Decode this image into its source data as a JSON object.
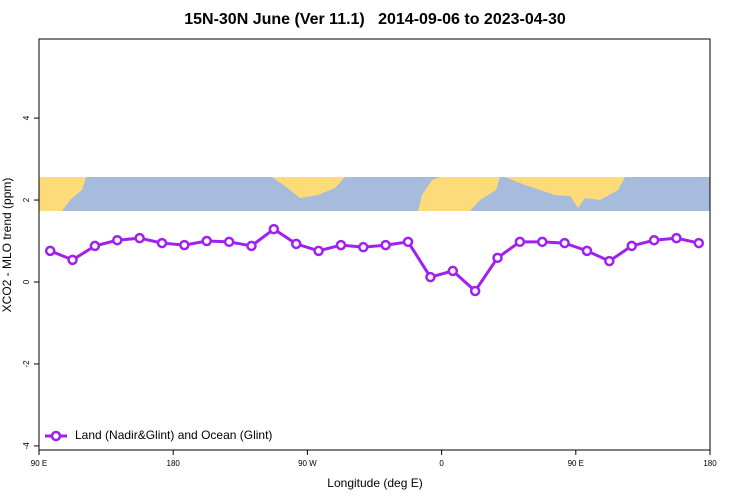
{
  "chart_data": {
    "type": "line",
    "title": "15N-30N June (Ver 11.1)   2014-09-06 to 2023-04-30",
    "x_label": "Longitude (deg E)",
    "y_label": "XCO2 - MLO trend (ppm)",
    "xlim": [
      90,
      540
    ],
    "ylim": [
      -4.1,
      5.93
    ],
    "xticks": [
      {
        "value": 90,
        "label": "90 E"
      },
      180,
      {
        "value": 270,
        "label": "90 W"
      },
      {
        "value": 360,
        "label": "0"
      },
      {
        "value": 450,
        "label": "90 E"
      },
      {
        "value": 540,
        "label": "180"
      }
    ],
    "yticks": [
      -4,
      -2,
      0,
      2,
      4
    ],
    "legend": "bottom-left",
    "x": [
      97.5,
      112.5,
      127.5,
      142.5,
      157.5,
      172.5,
      187.5,
      202.5,
      217.5,
      232.5,
      247.5,
      262.5,
      277.5,
      292.5,
      307.5,
      322.5,
      337.5,
      352.5,
      367.5,
      382.5,
      397.5,
      412.5,
      427.5,
      442.5,
      457.5,
      472.5,
      487.5,
      502.5,
      517.5,
      532.5
    ],
    "series": [
      {
        "name": "Land (Nadir&Glint) and Ocean (Glint)",
        "color": "#a020f0",
        "values": [
          0.76,
          0.54,
          0.88,
          1.02,
          1.07,
          0.95,
          0.9,
          1.0,
          0.98,
          0.88,
          1.29,
          0.93,
          0.76,
          0.9,
          0.85,
          0.9,
          0.98,
          0.12,
          0.27,
          -0.22,
          0.59,
          0.98,
          0.98,
          0.95,
          0.76,
          0.51,
          0.88,
          1.02,
          1.07,
          0.95
        ]
      }
    ]
  }
}
